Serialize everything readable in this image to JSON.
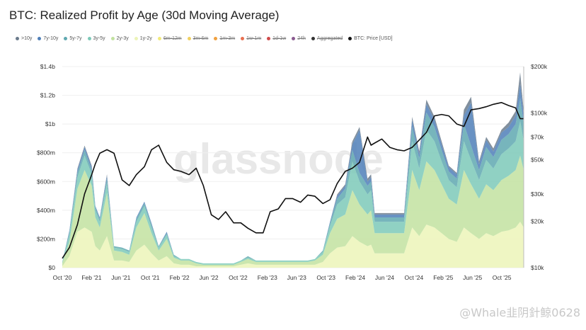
{
  "chart_data": {
    "type": "area",
    "title": "BTC: Realized Profit by Age (30d Moving Average)",
    "legend": [
      {
        "name": ">10y",
        "color": "#6b7b8c",
        "active": true
      },
      {
        "name": "7y-10y",
        "color": "#4f7fb8",
        "active": true
      },
      {
        "name": "5y-7y",
        "color": "#5fa8b0",
        "active": true
      },
      {
        "name": "3y-5y",
        "color": "#7cc9b8",
        "active": true
      },
      {
        "name": "2y-3y",
        "color": "#c2e2a0",
        "active": true
      },
      {
        "name": "1y-2y",
        "color": "#ecf4b8",
        "active": true
      },
      {
        "name": "6m-12m",
        "color": "#f2ea7a",
        "active": false
      },
      {
        "name": "3m-6m",
        "color": "#f0d060",
        "active": false
      },
      {
        "name": "1m-3m",
        "color": "#f0a040",
        "active": false
      },
      {
        "name": "1w-1m",
        "color": "#e87050",
        "active": false
      },
      {
        "name": "1d-1w",
        "color": "#d04a4a",
        "active": false
      },
      {
        "name": "24h",
        "color": "#8a5a90",
        "active": false
      },
      {
        "name": "Aggregated",
        "color": "#333333",
        "active": false
      },
      {
        "name": "BTC: Price [USD]",
        "color": "#111111",
        "active": true
      }
    ],
    "x_ticks": [
      "Oct '20",
      "Feb '21",
      "Jun '21",
      "Oct '21",
      "Feb '22",
      "Jun '22",
      "Oct '22",
      "Feb '23",
      "Jun '23",
      "Oct '23",
      "Feb '24",
      "Jun '24",
      "Oct '24",
      "Feb '25",
      "Jun '25",
      "Oct '25"
    ],
    "y_left_ticks": [
      "$0",
      "$200m",
      "$400m",
      "$600m",
      "$800m",
      "$1b",
      "$1.2b",
      "$1.4b"
    ],
    "y_left_range": [
      0,
      1.4
    ],
    "y_right_ticks": [
      "$10k",
      "$20k",
      "$30k",
      "$50k",
      "$70k",
      "$100k",
      "$200k"
    ],
    "y_right_range": [
      10000,
      200000
    ],
    "y_right_scale": "log",
    "x_range": [
      2020.75,
      2025.92
    ],
    "dates": [
      2020.75,
      2020.83,
      2020.92,
      2021.0,
      2021.08,
      2021.12,
      2021.17,
      2021.25,
      2021.33,
      2021.42,
      2021.5,
      2021.58,
      2021.67,
      2021.75,
      2021.83,
      2021.92,
      2022.0,
      2022.08,
      2022.17,
      2022.25,
      2022.33,
      2022.42,
      2022.5,
      2022.58,
      2022.67,
      2022.75,
      2022.83,
      2022.92,
      2023.0,
      2023.08,
      2023.17,
      2023.25,
      2023.33,
      2023.42,
      2023.5,
      2023.58,
      2023.67,
      2023.75,
      2023.83,
      2023.92,
      2024.0,
      2024.08,
      2024.17,
      2024.21,
      2024.25,
      2024.33,
      2024.42,
      2024.5,
      2024.58,
      2024.67,
      2024.75,
      2024.83,
      2024.92,
      2025.0,
      2025.08,
      2025.17,
      2025.25,
      2025.33,
      2025.42,
      2025.5,
      2025.58,
      2025.67,
      2025.75,
      2025.83,
      2025.88,
      2025.92
    ],
    "price_usd": [
      11500,
      13500,
      19000,
      30000,
      40000,
      47000,
      55000,
      58000,
      55000,
      37000,
      34000,
      40000,
      45000,
      58000,
      62000,
      48000,
      43000,
      42000,
      40000,
      44000,
      34000,
      22000,
      20500,
      23000,
      19500,
      19500,
      18000,
      16800,
      16800,
      23000,
      24000,
      28000,
      28000,
      26500,
      29500,
      29000,
      26000,
      27500,
      35000,
      42000,
      44000,
      48000,
      70000,
      62000,
      64000,
      68000,
      60000,
      58000,
      57000,
      60000,
      67000,
      75000,
      96000,
      98000,
      96000,
      85000,
      82000,
      105000,
      107000,
      110000,
      114000,
      117000,
      112000,
      108000,
      92000,
      92000
    ],
    "series": [
      {
        "name": "1y-2y",
        "values": [
          0.01,
          0.08,
          0.25,
          0.28,
          0.25,
          0.15,
          0.12,
          0.22,
          0.05,
          0.05,
          0.04,
          0.12,
          0.16,
          0.1,
          0.05,
          0.08,
          0.03,
          0.02,
          0.02,
          0.01,
          0.01,
          0.01,
          0.01,
          0.01,
          0.01,
          0.02,
          0.03,
          0.02,
          0.02,
          0.02,
          0.02,
          0.02,
          0.02,
          0.02,
          0.02,
          0.02,
          0.04,
          0.1,
          0.14,
          0.15,
          0.22,
          0.18,
          0.15,
          0.16,
          0.1,
          0.1,
          0.1,
          0.1,
          0.1,
          0.28,
          0.22,
          0.3,
          0.28,
          0.24,
          0.2,
          0.18,
          0.28,
          0.24,
          0.2,
          0.24,
          0.22,
          0.25,
          0.26,
          0.28,
          0.32,
          0.28
        ]
      },
      {
        "name": "2y-3y",
        "values": [
          0.02,
          0.1,
          0.3,
          0.4,
          0.32,
          0.2,
          0.16,
          0.3,
          0.07,
          0.06,
          0.05,
          0.16,
          0.22,
          0.14,
          0.07,
          0.12,
          0.04,
          0.03,
          0.03,
          0.02,
          0.01,
          0.01,
          0.01,
          0.01,
          0.01,
          0.02,
          0.03,
          0.02,
          0.02,
          0.02,
          0.02,
          0.02,
          0.02,
          0.02,
          0.02,
          0.03,
          0.05,
          0.14,
          0.2,
          0.22,
          0.32,
          0.26,
          0.22,
          0.24,
          0.14,
          0.14,
          0.14,
          0.14,
          0.14,
          0.4,
          0.32,
          0.44,
          0.4,
          0.34,
          0.28,
          0.26,
          0.4,
          0.34,
          0.28,
          0.34,
          0.32,
          0.36,
          0.38,
          0.4,
          0.46,
          0.4
        ]
      },
      {
        "name": "3y-5y",
        "values": [
          0.01,
          0.05,
          0.08,
          0.1,
          0.08,
          0.05,
          0.04,
          0.07,
          0.02,
          0.02,
          0.02,
          0.04,
          0.05,
          0.04,
          0.02,
          0.03,
          0.01,
          0.01,
          0.01,
          0.01,
          0.01,
          0.01,
          0.01,
          0.01,
          0.01,
          0.01,
          0.01,
          0.01,
          0.01,
          0.01,
          0.01,
          0.01,
          0.01,
          0.01,
          0.01,
          0.01,
          0.02,
          0.05,
          0.1,
          0.12,
          0.2,
          0.16,
          0.14,
          0.14,
          0.08,
          0.08,
          0.08,
          0.08,
          0.08,
          0.2,
          0.15,
          0.22,
          0.2,
          0.16,
          0.13,
          0.12,
          0.2,
          0.17,
          0.13,
          0.17,
          0.15,
          0.18,
          0.19,
          0.2,
          0.24,
          0.2
        ]
      },
      {
        "name": "5y-7y",
        "values": [
          0.0,
          0.02,
          0.03,
          0.04,
          0.03,
          0.02,
          0.02,
          0.03,
          0.01,
          0.01,
          0.01,
          0.02,
          0.02,
          0.02,
          0.01,
          0.01,
          0.01,
          0.0,
          0.0,
          0.0,
          0.0,
          0.0,
          0.0,
          0.0,
          0.0,
          0.0,
          0.01,
          0.0,
          0.0,
          0.0,
          0.0,
          0.0,
          0.0,
          0.0,
          0.0,
          0.0,
          0.01,
          0.02,
          0.04,
          0.06,
          0.08,
          0.06,
          0.06,
          0.06,
          0.03,
          0.03,
          0.03,
          0.03,
          0.03,
          0.1,
          0.07,
          0.12,
          0.1,
          0.08,
          0.06,
          0.06,
          0.12,
          0.1,
          0.07,
          0.09,
          0.08,
          0.1,
          0.1,
          0.12,
          0.16,
          0.12
        ]
      },
      {
        "name": "7y-10y",
        "values": [
          0.0,
          0.01,
          0.02,
          0.02,
          0.02,
          0.01,
          0.01,
          0.02,
          0.0,
          0.0,
          0.0,
          0.01,
          0.01,
          0.01,
          0.0,
          0.01,
          0.0,
          0.0,
          0.0,
          0.0,
          0.0,
          0.0,
          0.0,
          0.0,
          0.0,
          0.0,
          0.0,
          0.0,
          0.0,
          0.0,
          0.0,
          0.0,
          0.0,
          0.0,
          0.0,
          0.0,
          0.0,
          0.01,
          0.02,
          0.02,
          0.04,
          0.3,
          0.03,
          0.03,
          0.02,
          0.02,
          0.02,
          0.02,
          0.02,
          0.05,
          0.03,
          0.06,
          0.05,
          0.04,
          0.03,
          0.03,
          0.06,
          0.3,
          0.04,
          0.05,
          0.04,
          0.05,
          0.05,
          0.06,
          0.1,
          0.06
        ]
      },
      {
        "name": ">10y",
        "values": [
          0.0,
          0.0,
          0.01,
          0.01,
          0.01,
          0.0,
          0.0,
          0.01,
          0.0,
          0.0,
          0.0,
          0.0,
          0.0,
          0.0,
          0.0,
          0.0,
          0.0,
          0.0,
          0.0,
          0.0,
          0.0,
          0.0,
          0.0,
          0.0,
          0.0,
          0.0,
          0.0,
          0.0,
          0.0,
          0.0,
          0.0,
          0.0,
          0.0,
          0.0,
          0.0,
          0.0,
          0.0,
          0.0,
          0.01,
          0.01,
          0.02,
          0.02,
          0.02,
          0.02,
          0.01,
          0.01,
          0.01,
          0.01,
          0.01,
          0.02,
          0.02,
          0.03,
          0.02,
          0.02,
          0.01,
          0.01,
          0.04,
          0.04,
          0.02,
          0.02,
          0.02,
          0.02,
          0.03,
          0.03,
          0.08,
          0.03
        ]
      }
    ]
  },
  "watermark": "glassnode",
  "footer": "@Whale韭阴針鲸0628"
}
